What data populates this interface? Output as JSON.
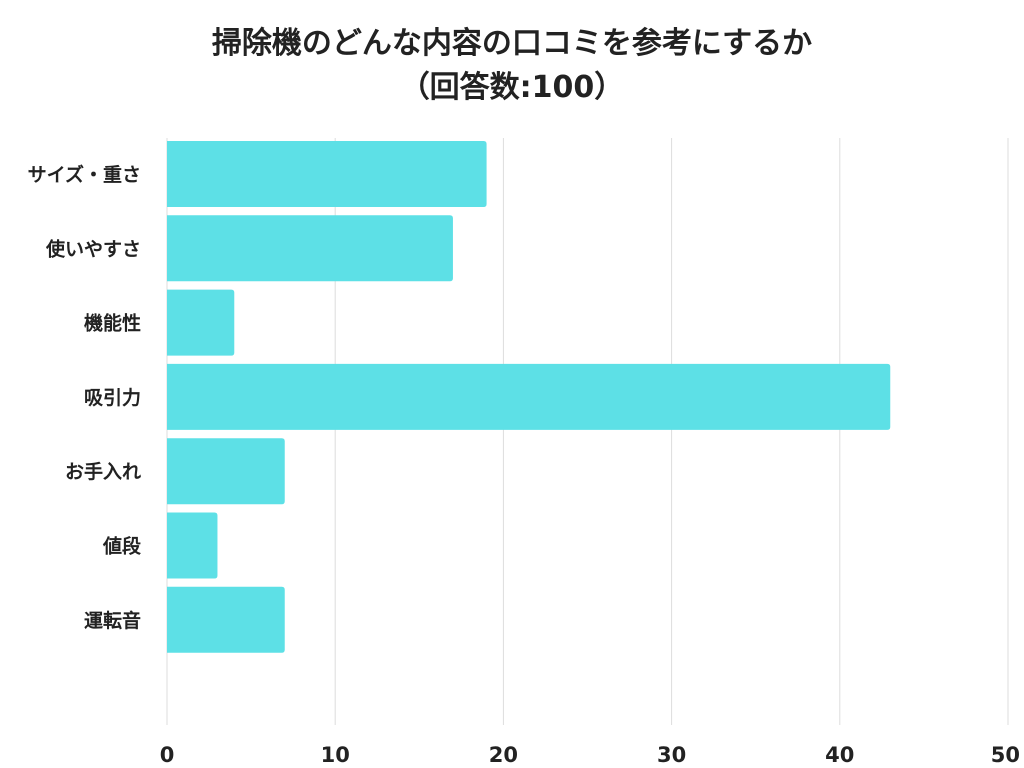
{
  "chart_data": {
    "type": "bar",
    "orientation": "horizontal",
    "title": "掃除機のどんな内容の口コミを参考にするか",
    "subtitle": "（回答数:100）",
    "categories": [
      "サイズ・重さ",
      "使いやすさ",
      "機能性",
      "吸引力",
      "お手入れ",
      "値段",
      "運転音"
    ],
    "values": [
      19,
      17,
      4,
      43,
      7,
      3,
      7
    ],
    "xlim": [
      0,
      50
    ],
    "xticks": [
      "0",
      "10",
      "20",
      "30",
      "40",
      "50"
    ],
    "grid": true,
    "legend": false,
    "bar_color": "#5de0e6",
    "grid_color": "#dddddd"
  }
}
